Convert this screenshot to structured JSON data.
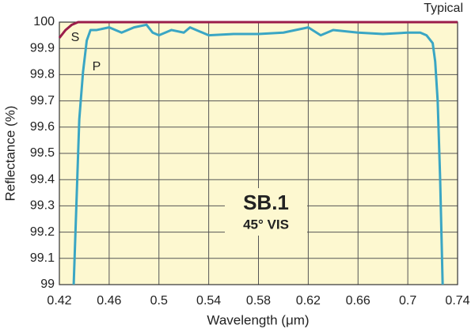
{
  "chart_data": {
    "type": "line",
    "title": "SB.1",
    "subtitle": "45° VIS",
    "annotation": "Typical",
    "x_label": "Wavelength (μm)",
    "y_label": "Reflectance (%)",
    "xlim": [
      0.42,
      0.74
    ],
    "xticks": [
      0.42,
      0.46,
      0.5,
      0.54,
      0.58,
      0.62,
      0.66,
      0.7,
      0.74
    ],
    "ylim": [
      99,
      100
    ],
    "yticks": [
      99,
      99.1,
      99.2,
      99.3,
      99.4,
      99.5,
      99.6,
      99.7,
      99.8,
      99.9,
      100
    ],
    "grid": true,
    "series": [
      {
        "name": "S",
        "color": "#9b1d4a",
        "x": [
          0.42,
          0.425,
          0.43,
          0.435,
          0.5,
          0.6,
          0.7,
          0.74
        ],
        "values": [
          99.94,
          99.97,
          99.99,
          100,
          100,
          100,
          100,
          100
        ]
      },
      {
        "name": "P",
        "color": "#3aa6c4",
        "x": [
          0.4315,
          0.436,
          0.439,
          0.442,
          0.445,
          0.45,
          0.46,
          0.47,
          0.48,
          0.49,
          0.495,
          0.5,
          0.51,
          0.52,
          0.525,
          0.53,
          0.54,
          0.56,
          0.58,
          0.6,
          0.62,
          0.63,
          0.64,
          0.66,
          0.68,
          0.7,
          0.71,
          0.715,
          0.72,
          0.722,
          0.724,
          0.726,
          0.728
        ],
        "values": [
          99,
          99.63,
          99.81,
          99.93,
          99.97,
          99.97,
          99.98,
          99.96,
          99.98,
          99.99,
          99.96,
          99.95,
          99.97,
          99.96,
          99.98,
          99.97,
          99.95,
          99.955,
          99.955,
          99.96,
          99.98,
          99.95,
          99.97,
          99.96,
          99.955,
          99.96,
          99.96,
          99.95,
          99.92,
          99.85,
          99.7,
          99.4,
          99
        ]
      }
    ]
  }
}
